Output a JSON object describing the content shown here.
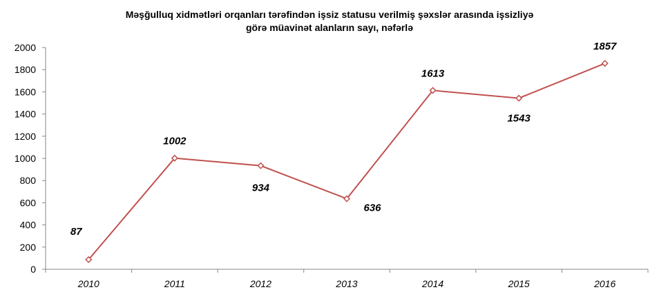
{
  "chart_data": {
    "type": "line",
    "title_line1": "Məşğulluq xidmətləri orqanları tərəfindən işsiz statusu verilmiş şəxslər arasında işsizliyə",
    "title_line2": "görə müavinət alanların sayı, nəfərlə",
    "categories": [
      "2010",
      "2011",
      "2012",
      "2013",
      "2014",
      "2015",
      "2016"
    ],
    "series": [
      {
        "values": [
          87,
          1002,
          934,
          636,
          1613,
          1543,
          1857
        ]
      }
    ],
    "data_labels": [
      "87",
      "1002",
      "934",
      "636",
      "1613",
      "1543",
      "1857"
    ],
    "y_ticks": [
      "0",
      "200",
      "400",
      "600",
      "800",
      "1000",
      "1200",
      "1400",
      "1600",
      "1800",
      "2000"
    ],
    "ylim": [
      0,
      2000
    ],
    "grid": false,
    "legend": "none",
    "line_color": "#C0504D"
  }
}
